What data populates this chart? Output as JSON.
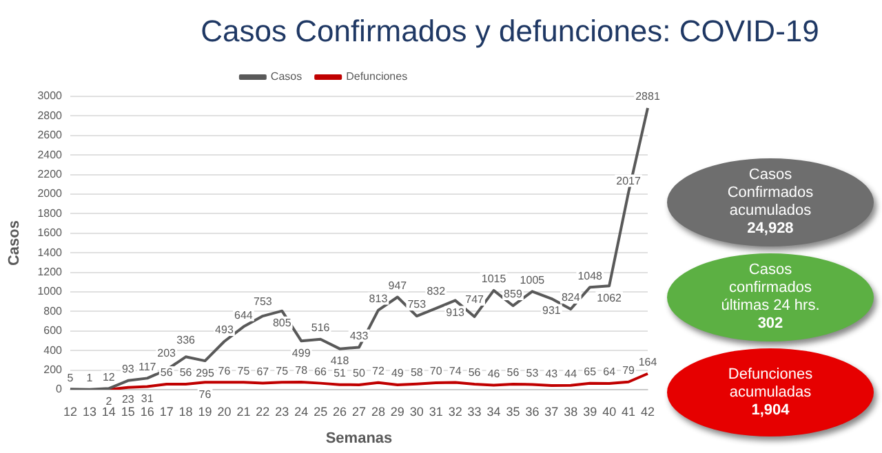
{
  "chart_data": [
    {
      "type": "line",
      "title": "Casos Confirmados y defunciones: COVID-19",
      "xlabel": "Semanas",
      "ylabel": "Casos",
      "categories": [
        "12",
        "13",
        "14",
        "15",
        "16",
        "17",
        "18",
        "19",
        "20",
        "21",
        "22",
        "23",
        "24",
        "25",
        "26",
        "27",
        "28",
        "29",
        "30",
        "31",
        "32",
        "33",
        "34",
        "35",
        "36",
        "37",
        "38",
        "39",
        "40",
        "41",
        "42"
      ],
      "series": [
        {
          "name": "Casos",
          "color": "#595959",
          "values": [
            5,
            1,
            12,
            93,
            117,
            203,
            336,
            295,
            493,
            644,
            753,
            805,
            499,
            516,
            418,
            433,
            813,
            947,
            753,
            832,
            913,
            747,
            1015,
            859,
            1005,
            931,
            824,
            1048,
            1062,
            2017,
            2881
          ]
        },
        {
          "name": "Defunciones",
          "color": "#c00000",
          "values": [
            null,
            null,
            2,
            23,
            31,
            56,
            56,
            76,
            76,
            75,
            67,
            75,
            78,
            66,
            51,
            50,
            72,
            49,
            58,
            70,
            74,
            56,
            46,
            56,
            53,
            43,
            44,
            65,
            64,
            79,
            164
          ]
        }
      ],
      "ylim": [
        0,
        3000
      ],
      "yticks": [
        0,
        200,
        400,
        600,
        800,
        1000,
        1200,
        1400,
        1600,
        1800,
        2000,
        2200,
        2400,
        2600,
        2800,
        3000
      ],
      "grid": "y",
      "legend": "top",
      "marker": "none",
      "data_labels": true
    },
    {
      "type": "other",
      "annotations": [
        "Casos\nConfirmados\nacumulados\n24,928",
        "Casos\nconfirmados\núltimas 24 hrs.\n302",
        "Defunciones\nacumuladas\n1,904"
      ],
      "colors": [
        "#6e6e6e",
        "#5cb043",
        "#e60000"
      ]
    }
  ]
}
